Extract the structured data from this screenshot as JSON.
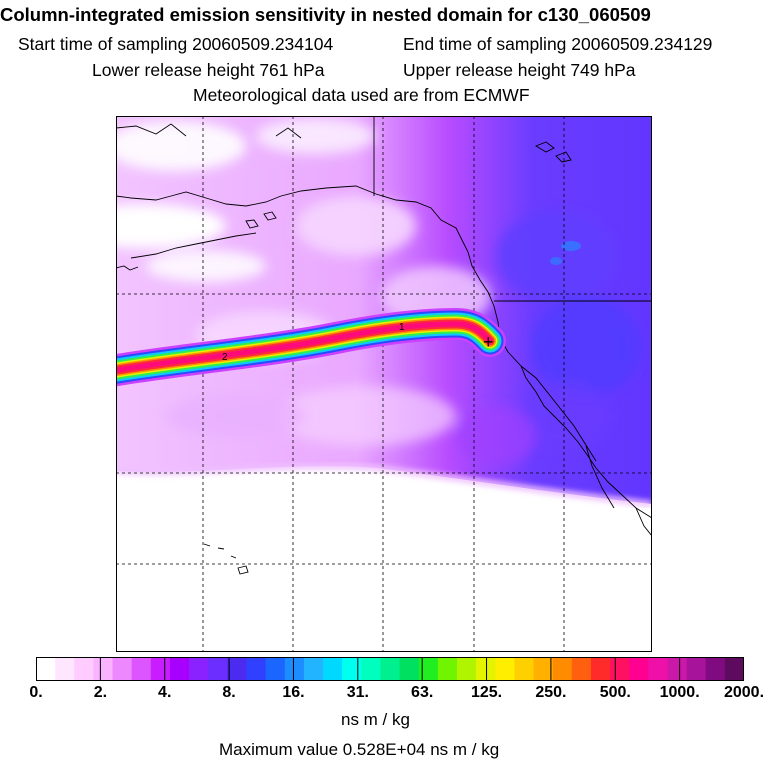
{
  "title": "Column-integrated emission sensitivity in nested domain for c130_060509",
  "start_label": "Start time of sampling 20060509.234104",
  "end_label": "End time of sampling 20060509.234129",
  "lower_label": "Lower release height  761 hPa",
  "upper_label": "Upper release height  749 hPa",
  "met_label": "Meteorological data used are from ECMWF",
  "map": {
    "plume_labels": [
      "1",
      "2"
    ],
    "release_marker": "+"
  },
  "colorbar": {
    "ticks": [
      "0.",
      "2.",
      "4.",
      "8.",
      "16.",
      "31.",
      "63.",
      "125.",
      "250.",
      "500.",
      "1000.",
      "2000."
    ],
    "colors": [
      "#ffffff",
      "#ffe6ff",
      "#ffccff",
      "#f9b3ff",
      "#ee88ff",
      "#dd55ff",
      "#c81eff",
      "#a800ff",
      "#8a22ff",
      "#6a2eff",
      "#4b2bef",
      "#3040ff",
      "#1a66ff",
      "#1c8cff",
      "#22b4ff",
      "#00d9ff",
      "#00ffee",
      "#00ffbe",
      "#00f090",
      "#00e060",
      "#20ee20",
      "#70f400",
      "#b0f400",
      "#e4f400",
      "#ffee00",
      "#ffd000",
      "#ffb000",
      "#ff8c00",
      "#ff6010",
      "#ff2a2a",
      "#ff1060",
      "#ff0090",
      "#ee10a8",
      "#cc18a8",
      "#a8139c",
      "#800a80",
      "#5e0a5e"
    ],
    "units": "ns m / kg"
  },
  "max_label": "Maximum value  0.528E+04 ns m / kg"
}
